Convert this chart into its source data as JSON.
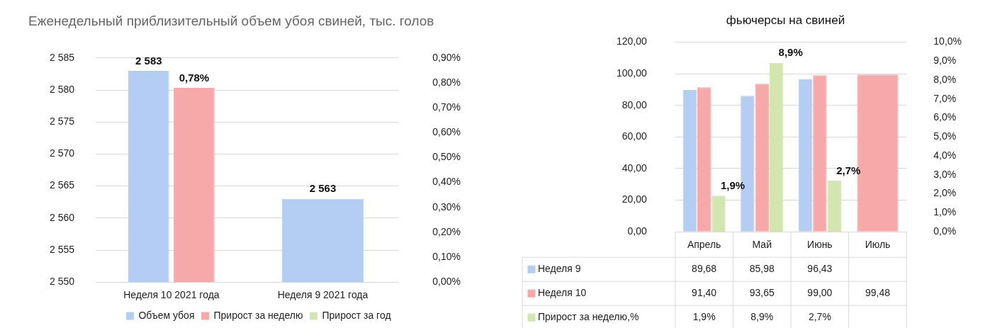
{
  "chart_data": [
    {
      "type": "bar",
      "title": "Еженедельный приблизительный объем убоя свиней, тыс. голов",
      "categories": [
        "Неделя 10 2021 года",
        "Неделя 9 2021 года"
      ],
      "series": [
        {
          "name": "Объем убоя",
          "color": "#b4cdf3",
          "values": [
            2583,
            2563
          ],
          "value_labels": [
            "2 583",
            "2 563"
          ]
        },
        {
          "name": "Прирост за неделю",
          "color": "#f7a9a9",
          "values": [
            0.78,
            null
          ],
          "axis": "y2",
          "value_labels": [
            "0,78%",
            null
          ]
        },
        {
          "name": "Прирост за год",
          "color": "#d3e6b0",
          "values": [
            null,
            null
          ],
          "axis": "y2"
        }
      ],
      "ylim": [
        2550,
        2585
      ],
      "yticks": [
        {
          "value": 2550,
          "label": "2 550"
        },
        {
          "value": 2555,
          "label": "2 555"
        },
        {
          "value": 2560,
          "label": "2 560"
        },
        {
          "value": 2565,
          "label": "2 565"
        },
        {
          "value": 2570,
          "label": "2 570"
        },
        {
          "value": 2575,
          "label": "2 575"
        },
        {
          "value": 2580,
          "label": "2 580"
        },
        {
          "value": 2585,
          "label": "2 585"
        }
      ],
      "y2lim": [
        0,
        0.9
      ],
      "y2ticks": [
        {
          "value": 0,
          "label": "0,00%"
        },
        {
          "value": 0.1,
          "label": "0,10%"
        },
        {
          "value": 0.2,
          "label": "0,20%"
        },
        {
          "value": 0.3,
          "label": "0,30%"
        },
        {
          "value": 0.4,
          "label": "0,40%"
        },
        {
          "value": 0.5,
          "label": "0,50%"
        },
        {
          "value": 0.6,
          "label": "0,60%"
        },
        {
          "value": 0.7,
          "label": "0,70%"
        },
        {
          "value": 0.8,
          "label": "0,80%"
        },
        {
          "value": 0.9,
          "label": "0,90%"
        }
      ],
      "grid": "y",
      "legend": "bottom"
    },
    {
      "type": "bar",
      "title": "фьючерсы на свиней",
      "categories": [
        "Апрель",
        "Май",
        "Июнь",
        "Июль"
      ],
      "series": [
        {
          "name": "Неделя 9",
          "color": "#b4cdf3",
          "values": [
            89.68,
            85.98,
            96.43,
            null
          ],
          "value_labels": [
            "89,68",
            "85,98",
            "96,43",
            null
          ]
        },
        {
          "name": "Неделя 10",
          "color": "#f7a9a9",
          "values": [
            91.4,
            93.65,
            99.0,
            99.48
          ],
          "value_labels": [
            "91,40",
            "93,65",
            "99,00",
            "99,48"
          ]
        },
        {
          "name": "Прирост за неделю,%",
          "color": "#d3e6b0",
          "values": [
            1.9,
            8.9,
            2.7,
            null
          ],
          "axis": "y2",
          "value_labels": [
            "1,9%",
            "8,9%",
            "2,7%",
            null
          ]
        }
      ],
      "ylim": [
        0,
        120
      ],
      "yticks": [
        {
          "value": 0,
          "label": "0,00"
        },
        {
          "value": 20,
          "label": "20,00"
        },
        {
          "value": 40,
          "label": "40,00"
        },
        {
          "value": 60,
          "label": "60,00"
        },
        {
          "value": 80,
          "label": "80,00"
        },
        {
          "value": 100,
          "label": "100,00"
        },
        {
          "value": 120,
          "label": "120,00"
        }
      ],
      "y2lim": [
        0,
        10
      ],
      "y2ticks": [
        {
          "value": 0,
          "label": "0,0%"
        },
        {
          "value": 1,
          "label": "1,0%"
        },
        {
          "value": 2,
          "label": "2,0%"
        },
        {
          "value": 3,
          "label": "3,0%"
        },
        {
          "value": 4,
          "label": "4,0%"
        },
        {
          "value": 5,
          "label": "5,0%"
        },
        {
          "value": 6,
          "label": "6,0%"
        },
        {
          "value": 7,
          "label": "7,0%"
        },
        {
          "value": 8,
          "label": "8,0%"
        },
        {
          "value": 9,
          "label": "9,0%"
        },
        {
          "value": 10,
          "label": "10,0%"
        }
      ],
      "grid": "y",
      "legend": "left"
    }
  ]
}
